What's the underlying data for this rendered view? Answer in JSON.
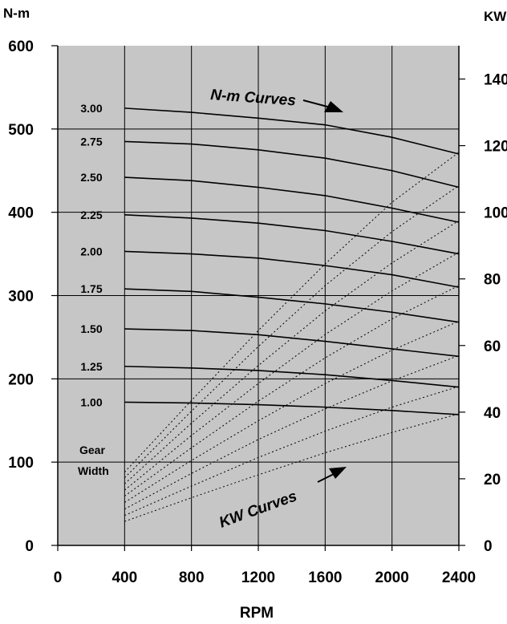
{
  "chart_data": {
    "type": "line",
    "xlabel": "RPM",
    "ylabel_left": "N-m",
    "ylabel_right": "KW",
    "x_ticks": [
      0,
      400,
      800,
      1200,
      1600,
      2000,
      2400
    ],
    "y_left_ticks": [
      0,
      100,
      200,
      300,
      400,
      500,
      600
    ],
    "y_right_ticks": [
      0,
      20,
      40,
      60,
      80,
      100,
      120,
      140
    ],
    "x_range": [
      0,
      2400
    ],
    "y_left_range": [
      0,
      600
    ],
    "y_right_range": [
      0,
      150
    ],
    "grid": true,
    "gear_width_header": [
      "Gear",
      "Width"
    ],
    "annotations": {
      "torque": "N-m Curves",
      "power": "KW Curves"
    },
    "x": [
      400,
      800,
      1200,
      1600,
      2000,
      2400
    ],
    "torque_series": [
      {
        "name": "3.00",
        "values": [
          525,
          520,
          513,
          505,
          490,
          470
        ]
      },
      {
        "name": "2.75",
        "values": [
          485,
          482,
          475,
          465,
          450,
          430
        ]
      },
      {
        "name": "2.50",
        "values": [
          442,
          438,
          430,
          420,
          405,
          388
        ]
      },
      {
        "name": "2.25",
        "values": [
          397,
          393,
          387,
          378,
          365,
          350
        ]
      },
      {
        "name": "2.00",
        "values": [
          353,
          350,
          345,
          336,
          325,
          310
        ]
      },
      {
        "name": "1.75",
        "values": [
          308,
          305,
          298,
          290,
          280,
          268
        ]
      },
      {
        "name": "1.50",
        "values": [
          260,
          258,
          253,
          245,
          236,
          227
        ]
      },
      {
        "name": "1.25",
        "values": [
          215,
          213,
          210,
          205,
          198,
          190
        ]
      },
      {
        "name": "1.00",
        "values": [
          172,
          171,
          169,
          166,
          162,
          157
        ]
      }
    ],
    "power_series": [
      {
        "name": "3.00",
        "values": [
          22,
          43.5,
          64.5,
          84.5,
          103,
          118
        ]
      },
      {
        "name": "2.75",
        "values": [
          20.3,
          40.3,
          59.7,
          78,
          94.2,
          108
        ]
      },
      {
        "name": "2.50",
        "values": [
          18.5,
          36.7,
          54,
          70.4,
          84.8,
          97.5
        ]
      },
      {
        "name": "2.25",
        "values": [
          16.6,
          33,
          48.6,
          63.3,
          76.4,
          88
        ]
      },
      {
        "name": "2.00",
        "values": [
          14.8,
          29.3,
          43.3,
          56.3,
          68,
          78
        ]
      },
      {
        "name": "1.75",
        "values": [
          12.9,
          25.5,
          37.4,
          48.6,
          58.6,
          67.3
        ]
      },
      {
        "name": "1.50",
        "values": [
          10.9,
          21.6,
          31.8,
          41,
          49.4,
          57
        ]
      },
      {
        "name": "1.25",
        "values": [
          9,
          17.8,
          26.4,
          34.3,
          41.5,
          47.7
        ]
      },
      {
        "name": "1.00",
        "values": [
          7.2,
          14.3,
          21.2,
          27.8,
          33.9,
          39.5
        ]
      }
    ]
  }
}
